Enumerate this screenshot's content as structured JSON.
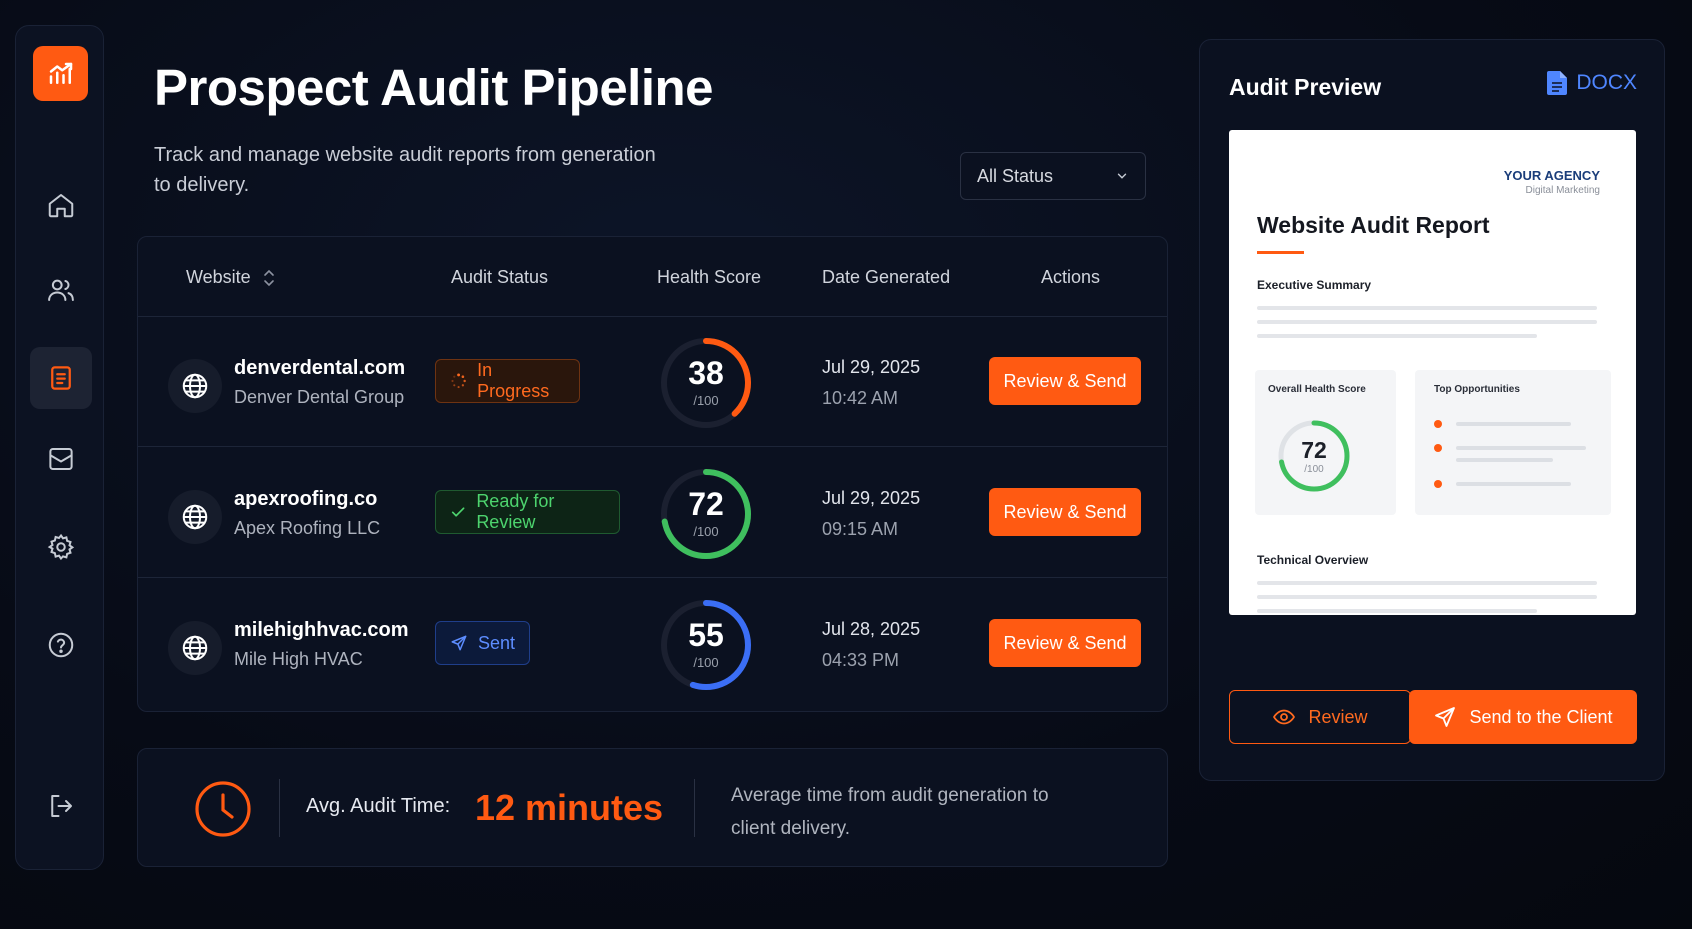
{
  "header": {
    "title": "Prospect Audit Pipeline",
    "subtitle": "Track and manage website audit reports from generation to delivery."
  },
  "filter": {
    "selected": "All Status"
  },
  "sidebar": {
    "logo_icon": "chart-trend-icon",
    "items": [
      {
        "icon": "home-icon",
        "active": false
      },
      {
        "icon": "users-icon",
        "active": false
      },
      {
        "icon": "document-icon",
        "active": true
      },
      {
        "icon": "mail-icon",
        "active": false
      },
      {
        "icon": "gear-icon",
        "active": false
      },
      {
        "icon": "help-icon",
        "active": false
      },
      {
        "icon": "logout-icon",
        "active": false
      }
    ]
  },
  "table": {
    "columns": [
      "Website",
      "Audit Status",
      "Health Score",
      "Date Generated",
      "Actions"
    ],
    "rows": [
      {
        "site": "denverdental.com",
        "org": "Denver Dental Group",
        "status": "In Progress",
        "score": "38",
        "score_value": 38,
        "score_den": "/100",
        "score_color": "#ff5a12",
        "date": "Jul 29, 2025",
        "time": "10:42 AM",
        "action": "Review & Send"
      },
      {
        "site": "apexroofing.co",
        "org": "Apex Roofing LLC",
        "status": "Ready for Review",
        "score": "72",
        "score_value": 72,
        "score_den": "/100",
        "score_color": "#3fbf5e",
        "date": "Jul 29, 2025",
        "time": "09:15 AM",
        "action": "Review & Send"
      },
      {
        "site": "milehighhvac.com",
        "org": "Mile High HVAC",
        "status": "Sent",
        "score": "55",
        "score_value": 55,
        "score_den": "/100",
        "score_color": "#3b6ef5",
        "date": "Jul 28, 2025",
        "time": "04:33 PM",
        "action": "Review & Send"
      }
    ]
  },
  "stats": {
    "label": "Avg. Audit Time:",
    "value": "12 minutes",
    "description": "Average time from audit generation to client delivery."
  },
  "preview": {
    "title": "Audit Preview",
    "format": "DOCX",
    "doc": {
      "agency": "YOUR AGENCY",
      "agency_sub": "Digital Marketing",
      "title": "Website Audit Report",
      "section1": "Executive Summary",
      "score_label": "Overall Health Score",
      "score": "72",
      "score_value": 72,
      "score_den": "/100",
      "opps_label": "Top Opportunities",
      "section2": "Technical Overview"
    },
    "review_label": "Review",
    "send_label": "Send to the Client"
  },
  "colors": {
    "accent": "#ff5a12",
    "success": "#3fbf5e",
    "info": "#3b6ef5",
    "bg": "#070b16"
  }
}
